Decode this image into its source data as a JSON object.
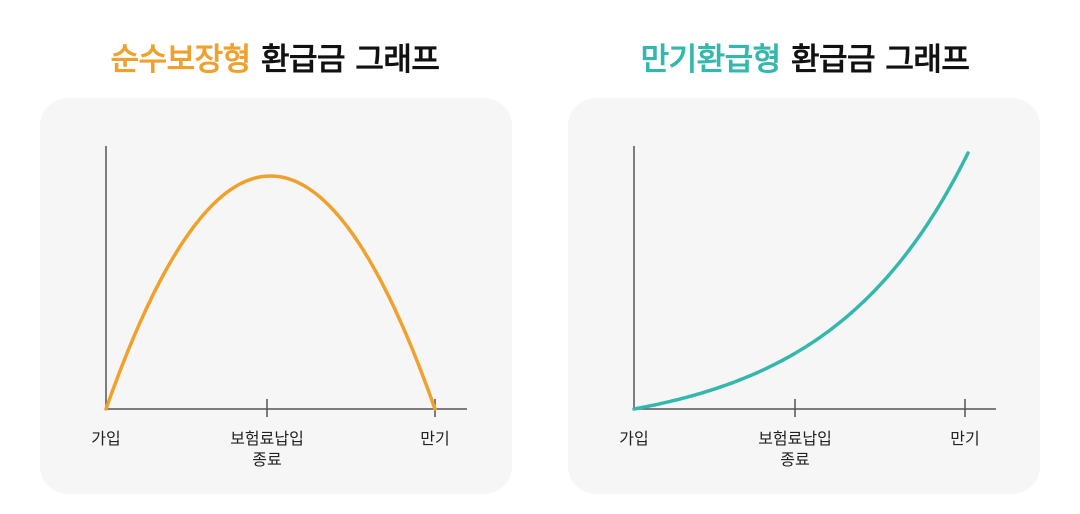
{
  "charts": {
    "left": {
      "title_accent": "순수보장형",
      "title_rest": "환급금 그래프"
    },
    "right": {
      "title_accent": "만기환급형",
      "title_rest": "환급금 그래프"
    }
  },
  "colors": {
    "orange": "#f0a12d",
    "teal": "#34b8ad",
    "axis": "#555555",
    "panel": "#f6f6f6"
  },
  "chart_data": [
    {
      "type": "line",
      "title": "순수보장형 환급금 그래프",
      "x_tick_labels": [
        "가입",
        "보험료납입 종료",
        "만기"
      ],
      "x": [
        0,
        0.25,
        0.5,
        0.75,
        1
      ],
      "series": [
        {
          "color": "#f0a12d",
          "values": [
            0,
            0.8,
            1,
            0.8,
            0
          ]
        }
      ],
      "grid": false
    },
    {
      "type": "line",
      "title": "만기환급형 환급금 그래프",
      "x_tick_labels": [
        "가입",
        "보험료납입 종료",
        "만기"
      ],
      "x": [
        0,
        0.25,
        0.5,
        0.75,
        1
      ],
      "series": [
        {
          "color": "#34b8ad",
          "values": [
            0,
            0.1,
            0.24,
            0.5,
            1
          ]
        }
      ],
      "grid": false
    }
  ]
}
